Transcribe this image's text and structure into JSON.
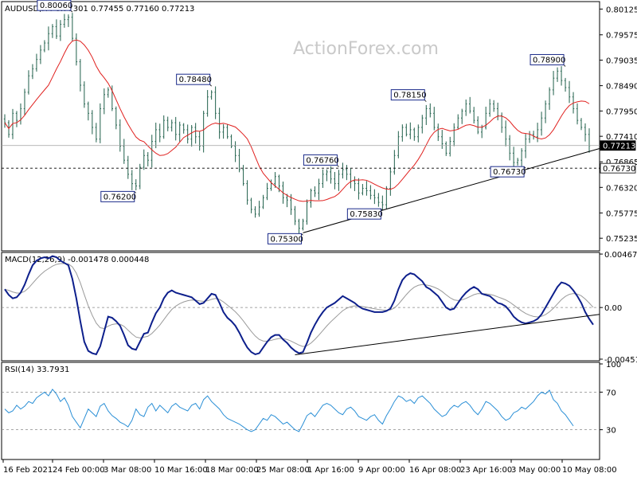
{
  "chart_data": [
    {
      "type": "candlestick",
      "title": "AUDUSD,H4 0.77301 0.77455 0.77160 0.77213",
      "watermark": "ActionForex.com",
      "ylim": [
        0.75,
        0.8025
      ],
      "y_tick_labels": [
        "0.80125",
        "0.79575",
        "0.79035",
        "0.78490",
        "0.77950",
        "0.77410",
        "0.76865",
        "0.76320",
        "0.75775",
        "0.75235"
      ],
      "y_tick_values": [
        0.80125,
        0.79575,
        0.79035,
        0.7849,
        0.7795,
        0.7741,
        0.76865,
        0.7632,
        0.75775,
        0.75235
      ],
      "x_tick_labels": [
        "16 Feb 2021",
        "24 Feb 00:00",
        "3 Mar 08:00",
        "10 Mar 16:00",
        "18 Mar 00:00",
        "25 Mar 08:00",
        "1 Apr 16:00",
        "9 Apr 00:00",
        "16 Apr 08:00",
        "23 Apr 16:00",
        "3 May 00:00",
        "10 May 08:00"
      ],
      "current_price": "0.77213",
      "support_level": "0.76730",
      "annotations": [
        {
          "label": "0.80060",
          "value": 0.8006,
          "bar": 17,
          "side": "top"
        },
        {
          "label": "0.78480",
          "value": 0.7848,
          "bar": 52,
          "side": "top"
        },
        {
          "label": "0.76200",
          "value": 0.762,
          "bar": 33,
          "side": "bottom"
        },
        {
          "label": "0.75300",
          "value": 0.753,
          "bar": 75,
          "side": "bottom"
        },
        {
          "label": "0.76760",
          "value": 0.7676,
          "bar": 84,
          "side": "top"
        },
        {
          "label": "0.75830",
          "value": 0.7583,
          "bar": 95,
          "side": "bottom"
        },
        {
          "label": "0.78150",
          "value": 0.7815,
          "bar": 106,
          "side": "top"
        },
        {
          "label": "0.76730",
          "value": 0.7673,
          "bar": 131,
          "side": "bottom"
        },
        {
          "label": "0.78900",
          "value": 0.789,
          "bar": 141,
          "side": "top"
        }
      ],
      "close_series": [
        0.777,
        0.7745,
        0.779,
        0.7775,
        0.78,
        0.7835,
        0.787,
        0.7885,
        0.7905,
        0.7925,
        0.794,
        0.796,
        0.7975,
        0.7955,
        0.798,
        0.799,
        0.7995,
        0.795,
        0.79,
        0.785,
        0.781,
        0.779,
        0.776,
        0.7735,
        0.78,
        0.783,
        0.784,
        0.78,
        0.7765,
        0.772,
        0.769,
        0.766,
        0.764,
        0.7635,
        0.7675,
        0.77,
        0.769,
        0.773,
        0.7755,
        0.774,
        0.7775,
        0.776,
        0.777,
        0.7745,
        0.7765,
        0.7755,
        0.7735,
        0.776,
        0.774,
        0.772,
        0.779,
        0.7825,
        0.7835,
        0.779,
        0.775,
        0.776,
        0.774,
        0.772,
        0.77,
        0.767,
        0.764,
        0.7605,
        0.7585,
        0.7575,
        0.759,
        0.761,
        0.763,
        0.764,
        0.7655,
        0.7635,
        0.761,
        0.7605,
        0.7585,
        0.756,
        0.7545,
        0.756,
        0.76,
        0.7625,
        0.762,
        0.764,
        0.766,
        0.7665,
        0.765,
        0.764,
        0.766,
        0.767,
        0.766,
        0.7645,
        0.764,
        0.762,
        0.763,
        0.7625,
        0.7615,
        0.761,
        0.76,
        0.7595,
        0.763,
        0.7665,
        0.77,
        0.774,
        0.776,
        0.7745,
        0.7755,
        0.774,
        0.776,
        0.778,
        0.78,
        0.779,
        0.776,
        0.774,
        0.7725,
        0.7705,
        0.773,
        0.776,
        0.778,
        0.7795,
        0.781,
        0.7795,
        0.7775,
        0.775,
        0.776,
        0.779,
        0.781,
        0.78,
        0.7785,
        0.776,
        0.7735,
        0.7705,
        0.7685,
        0.769,
        0.771,
        0.7735,
        0.7745,
        0.774,
        0.7755,
        0.778,
        0.781,
        0.784,
        0.7865,
        0.788,
        0.786,
        0.7845,
        0.7825,
        0.78,
        0.7775,
        0.776,
        0.7745,
        0.7721
      ]
    },
    {
      "type": "line",
      "title": "MACD(12,26,9) -0.001478 0.000448",
      "ylim": [
        -0.00452,
        0.00468
      ],
      "y_tick_labels": [
        "0.004677",
        "0.00",
        "-0.004519"
      ],
      "y_tick_values": [
        0.004677,
        0.0,
        -0.004519
      ],
      "macd_series": [
        0.0016,
        0.0011,
        0.0008,
        0.0009,
        0.0013,
        0.002,
        0.0029,
        0.0037,
        0.0041,
        0.0043,
        0.0044,
        0.0043,
        0.0045,
        0.0044,
        0.0041,
        0.0039,
        0.0037,
        0.0025,
        0.0008,
        -0.0012,
        -0.003,
        -0.0038,
        -0.004,
        -0.0041,
        -0.0034,
        -0.0021,
        -0.0008,
        -0.0009,
        -0.0012,
        -0.0016,
        -0.0024,
        -0.0033,
        -0.0036,
        -0.0037,
        -0.003,
        -0.0023,
        -0.0022,
        -0.0013,
        -0.0005,
        0.0,
        0.0008,
        0.0013,
        0.0015,
        0.0013,
        0.0012,
        0.0011,
        0.001,
        0.0009,
        0.0006,
        0.0003,
        0.0004,
        0.0008,
        0.0012,
        0.0011,
        0.0004,
        -0.0004,
        -0.0009,
        -0.0012,
        -0.0016,
        -0.0022,
        -0.0029,
        -0.0035,
        -0.0039,
        -0.0041,
        -0.004,
        -0.0035,
        -0.003,
        -0.0026,
        -0.0024,
        -0.0024,
        -0.0028,
        -0.0031,
        -0.0035,
        -0.0038,
        -0.004,
        -0.0039,
        -0.0031,
        -0.0022,
        -0.0015,
        -0.0009,
        -0.0004,
        0.0,
        0.0002,
        0.0004,
        0.0007,
        0.001,
        0.0008,
        0.0006,
        0.0004,
        0.0001,
        -0.0001,
        -0.0002,
        -0.0003,
        -0.0004,
        -0.0004,
        -0.0004,
        -0.0003,
        -0.0001,
        0.0006,
        0.0016,
        0.0024,
        0.0028,
        0.003,
        0.0029,
        0.0026,
        0.0023,
        0.0018,
        0.0016,
        0.0013,
        0.001,
        0.0005,
        0.0,
        -0.0002,
        -0.0001,
        0.0004,
        0.0009,
        0.0013,
        0.0016,
        0.0018,
        0.0016,
        0.0012,
        0.0011,
        0.001,
        0.0007,
        0.0004,
        0.0003,
        0.0001,
        -0.0003,
        -0.0008,
        -0.0011,
        -0.0013,
        -0.0014,
        -0.0013,
        -0.0012,
        -0.001,
        -0.0006,
        0.0,
        0.0006,
        0.0012,
        0.0018,
        0.0022,
        0.0021,
        0.0019,
        0.0015,
        0.001,
        0.0004,
        -0.0004,
        -0.001,
        -0.0015
      ]
    },
    {
      "type": "line",
      "title": "RSI(14) 33.7931",
      "ylim": [
        0,
        100
      ],
      "y_tick_labels": [
        "100",
        "70",
        "30",
        "0"
      ],
      "y_tick_values": [
        100,
        70,
        30,
        0
      ],
      "rsi_series": [
        52,
        48,
        50,
        56,
        52,
        55,
        60,
        58,
        64,
        67,
        70,
        66,
        73,
        68,
        60,
        64,
        56,
        44,
        38,
        32,
        42,
        52,
        48,
        44,
        55,
        58,
        50,
        45,
        42,
        38,
        36,
        33,
        40,
        52,
        46,
        44,
        54,
        58,
        50,
        56,
        52,
        48,
        55,
        58,
        54,
        52,
        50,
        56,
        58,
        52,
        62,
        66,
        60,
        56,
        52,
        46,
        42,
        40,
        38,
        36,
        33,
        30,
        28,
        30,
        36,
        42,
        40,
        46,
        44,
        40,
        36,
        38,
        34,
        30,
        28,
        36,
        45,
        48,
        44,
        50,
        56,
        58,
        56,
        52,
        48,
        46,
        52,
        54,
        50,
        44,
        42,
        40,
        44,
        46,
        40,
        36,
        45,
        52,
        60,
        66,
        64,
        60,
        62,
        58,
        64,
        66,
        62,
        58,
        52,
        48,
        44,
        46,
        52,
        56,
        54,
        58,
        60,
        56,
        50,
        46,
        52,
        60,
        58,
        54,
        50,
        44,
        40,
        42,
        48,
        50,
        54,
        52,
        56,
        60,
        66,
        70,
        68,
        72,
        62,
        58,
        50,
        46,
        40,
        34
      ]
    }
  ]
}
